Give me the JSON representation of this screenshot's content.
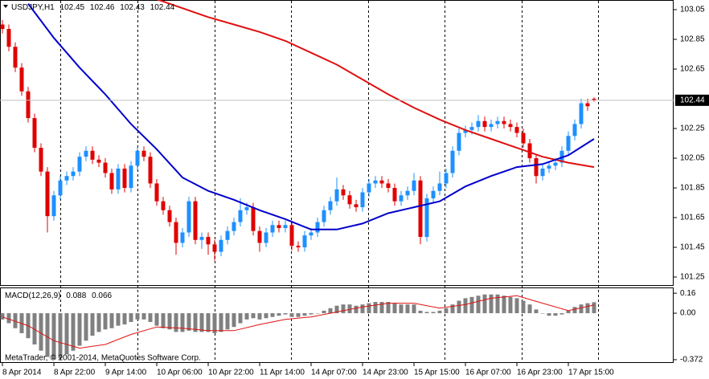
{
  "chart_data": {
    "type": "candlestick",
    "symbol": "USDJPY,H1",
    "open": [
      102.95,
      102.92,
      102.8,
      102.66,
      102.5,
      102.32,
      102.12,
      101.96,
      101.66,
      101.8,
      101.9,
      101.93,
      101.96,
      102.06,
      102.1,
      102.04,
      102.02,
      101.95,
      101.84,
      101.98,
      101.85,
      102.0,
      102.1,
      102.06,
      101.88,
      101.76,
      101.7,
      101.62,
      101.48,
      101.55,
      101.76,
      101.5,
      101.52,
      101.47,
      101.42,
      101.5,
      101.56,
      101.62,
      101.7,
      101.72,
      101.56,
      101.48,
      101.55,
      101.6,
      101.58,
      101.6,
      101.46,
      101.45,
      101.53,
      101.55,
      101.62,
      101.7,
      101.76,
      101.84,
      101.8,
      101.74,
      101.72,
      101.82,
      101.88,
      101.9,
      101.88,
      101.85,
      101.76,
      101.8,
      101.83,
      101.9,
      101.52,
      101.78,
      101.83,
      101.88,
      101.95,
      102.1,
      102.22,
      102.24,
      102.26,
      102.3,
      102.26,
      102.28,
      102.3,
      102.28,
      102.26,
      102.22,
      102.15,
      102.05,
      101.93,
      101.98,
      102.0,
      102.02,
      102.1,
      102.2,
      102.28,
      102.42,
      102.45
    ],
    "high": [
      102.98,
      102.95,
      102.83,
      102.69,
      102.53,
      102.35,
      102.15,
      101.99,
      101.83,
      101.93,
      101.96,
      101.99,
      102.09,
      102.13,
      102.13,
      102.07,
      102.05,
      101.98,
      102.01,
      102.01,
      102.03,
      102.13,
      102.13,
      102.09,
      101.91,
      101.79,
      101.73,
      101.65,
      101.58,
      101.79,
      101.79,
      101.55,
      101.55,
      101.5,
      101.53,
      101.59,
      101.65,
      101.78,
      101.75,
      101.75,
      101.59,
      101.58,
      101.63,
      101.63,
      101.63,
      101.63,
      101.49,
      101.56,
      101.58,
      101.65,
      101.73,
      101.79,
      101.92,
      101.87,
      101.83,
      101.77,
      101.85,
      101.91,
      101.93,
      101.93,
      101.91,
      101.88,
      101.83,
      101.86,
      101.95,
      101.93,
      101.81,
      101.86,
      101.96,
      101.98,
      102.13,
      102.25,
      102.27,
      102.29,
      102.34,
      102.33,
      102.31,
      102.33,
      102.33,
      102.31,
      102.29,
      102.25,
      102.18,
      102.08,
      102.01,
      102.03,
      102.05,
      102.13,
      102.23,
      102.31,
      102.45,
      102.45,
      102.46
    ],
    "low": [
      102.89,
      102.77,
      102.63,
      102.47,
      102.29,
      102.09,
      101.93,
      101.55,
      101.63,
      101.77,
      101.87,
      101.9,
      101.93,
      102.03,
      102.01,
      101.99,
      101.92,
      101.81,
      101.81,
      101.82,
      101.82,
      101.97,
      102.03,
      101.85,
      101.73,
      101.67,
      101.59,
      101.4,
      101.45,
      101.52,
      101.47,
      101.44,
      101.4,
      101.36,
      101.39,
      101.47,
      101.53,
      101.59,
      101.67,
      101.53,
      101.42,
      101.45,
      101.52,
      101.55,
      101.55,
      101.43,
      101.42,
      101.42,
      101.5,
      101.52,
      101.59,
      101.67,
      101.73,
      101.77,
      101.71,
      101.69,
      101.69,
      101.79,
      101.85,
      101.85,
      101.82,
      101.73,
      101.73,
      101.77,
      101.8,
      101.47,
      101.49,
      101.75,
      101.8,
      101.85,
      101.92,
      102.07,
      102.19,
      102.21,
      102.23,
      102.23,
      102.23,
      102.25,
      102.25,
      102.23,
      102.19,
      102.12,
      102.02,
      101.88,
      101.9,
      101.95,
      101.97,
      101.99,
      102.07,
      102.17,
      102.25,
      102.37,
      102.43
    ],
    "close": [
      102.92,
      102.8,
      102.66,
      102.5,
      102.32,
      102.12,
      101.96,
      101.66,
      101.8,
      101.9,
      101.93,
      101.96,
      102.06,
      102.1,
      102.04,
      102.02,
      101.95,
      101.84,
      101.98,
      101.85,
      102.0,
      102.1,
      102.06,
      101.88,
      101.76,
      101.7,
      101.62,
      101.48,
      101.55,
      101.76,
      101.5,
      101.52,
      101.47,
      101.42,
      101.5,
      101.56,
      101.62,
      101.7,
      101.72,
      101.56,
      101.48,
      101.55,
      101.6,
      101.58,
      101.6,
      101.46,
      101.45,
      101.53,
      101.55,
      101.62,
      101.7,
      101.76,
      101.84,
      101.8,
      101.74,
      101.72,
      101.82,
      101.88,
      101.9,
      101.88,
      101.85,
      101.76,
      101.8,
      101.83,
      101.9,
      101.52,
      101.78,
      101.83,
      101.88,
      101.95,
      102.1,
      102.22,
      102.24,
      102.26,
      102.3,
      102.26,
      102.28,
      102.3,
      102.28,
      102.26,
      102.22,
      102.15,
      102.05,
      101.93,
      101.98,
      102.0,
      102.02,
      102.1,
      102.2,
      102.28,
      102.42,
      102.4,
      102.44
    ],
    "colors": {
      "up": "#1e90ff",
      "down": "#e00000"
    },
    "xlim": [
      -0.375,
      104.375
    ],
    "xticks": [
      {
        "value": 0,
        "label": "8 Apr 2014"
      },
      {
        "value": 8,
        "label": "8 Apr 22:00"
      },
      {
        "value": 16,
        "label": "9 Apr 14:00"
      },
      {
        "value": 24,
        "label": "10 Apr 06:00"
      },
      {
        "value": 32,
        "label": "10 Apr 22:00"
      },
      {
        "value": 40,
        "label": "11 Apr 14:00"
      },
      {
        "value": 48,
        "label": "14 Apr 07:00"
      },
      {
        "value": 56,
        "label": "14 Apr 23:00"
      },
      {
        "value": 64,
        "label": "15 Apr 15:00"
      },
      {
        "value": 72,
        "label": "16 Apr 07:00"
      },
      {
        "value": 80,
        "label": "16 Apr 23:00"
      },
      {
        "value": 88,
        "label": "17 Apr 15:00"
      }
    ],
    "ylim": [
      101.196,
      103.115
    ],
    "yticks": [
      103.05,
      102.85,
      102.65,
      102.25,
      102.05,
      101.85,
      101.65,
      101.45,
      101.25
    ],
    "moving_averages": [
      {
        "color": "#e01010",
        "x": [
          24,
          28,
          32,
          36,
          40,
          44,
          48,
          52,
          56,
          60,
          64,
          68,
          72,
          76,
          80,
          84,
          88,
          92
        ],
        "values": [
          103.12,
          103.06,
          103.0,
          102.95,
          102.9,
          102.84,
          102.76,
          102.68,
          102.58,
          102.48,
          102.39,
          102.31,
          102.24,
          102.18,
          102.12,
          102.06,
          102.02,
          101.99
        ]
      },
      {
        "color": "#0000cc",
        "x": [
          4,
          8,
          12,
          16,
          20,
          24,
          28,
          32,
          36,
          40,
          44,
          48,
          52,
          56,
          60,
          64,
          68,
          72,
          76,
          80,
          84,
          88,
          92
        ],
        "values": [
          103.09,
          102.86,
          102.66,
          102.48,
          102.28,
          102.11,
          101.92,
          101.83,
          101.77,
          101.7,
          101.64,
          101.57,
          101.57,
          101.61,
          101.68,
          101.72,
          101.76,
          101.86,
          101.93,
          101.99,
          102.01,
          102.07,
          102.18
        ]
      }
    ],
    "indicator": {
      "name": "MACD(12,26,9)",
      "type": "bar",
      "color": "#808080",
      "values": [
        -0.05,
        -0.08,
        -0.12,
        -0.16,
        -0.2,
        -0.25,
        -0.3,
        -0.35,
        -0.37,
        -0.36,
        -0.33,
        -0.3,
        -0.26,
        -0.22,
        -0.18,
        -0.15,
        -0.13,
        -0.12,
        -0.1,
        -0.09,
        -0.07,
        -0.05,
        -0.05,
        -0.07,
        -0.1,
        -0.12,
        -0.13,
        -0.15,
        -0.15,
        -0.14,
        -0.15,
        -0.15,
        -0.15,
        -0.16,
        -0.15,
        -0.13,
        -0.11,
        -0.08,
        -0.05,
        -0.04,
        -0.05,
        -0.04,
        -0.03,
        -0.02,
        -0.01,
        -0.03,
        -0.03,
        -0.02,
        -0.01,
        0.0,
        0.02,
        0.04,
        0.06,
        0.07,
        0.07,
        0.06,
        0.07,
        0.08,
        0.09,
        0.09,
        0.09,
        0.08,
        0.07,
        0.07,
        0.07,
        0.02,
        0.01,
        0.01,
        0.02,
        0.04,
        0.07,
        0.1,
        0.12,
        0.13,
        0.14,
        0.15,
        0.15,
        0.15,
        0.14,
        0.13,
        0.12,
        0.1,
        0.07,
        0.03,
        0.0,
        -0.02,
        -0.02,
        -0.01,
        0.02,
        0.05,
        0.07,
        0.08,
        0.088
      ],
      "signal": {
        "color": "#e01010",
        "x": [
          0,
          4,
          8,
          12,
          16,
          20,
          24,
          28,
          32,
          36,
          40,
          44,
          48,
          52,
          56,
          60,
          64,
          68,
          72,
          76,
          80,
          84,
          88,
          92
        ],
        "values": [
          -0.03,
          -0.1,
          -0.22,
          -0.28,
          -0.25,
          -0.17,
          -0.11,
          -0.12,
          -0.14,
          -0.14,
          -0.09,
          -0.05,
          -0.03,
          0.01,
          0.05,
          0.08,
          0.08,
          0.04,
          0.07,
          0.12,
          0.14,
          0.08,
          0.02,
          0.066
        ]
      },
      "ylim": [
        -0.398,
        0.206
      ],
      "yticks": [
        0.16,
        {
          "value": 0,
          "label": "0.00"
        },
        -0.372
      ]
    },
    "footer": "MetaTrader, © 2001-2014, MetaQuotes Software Corp."
  }
}
